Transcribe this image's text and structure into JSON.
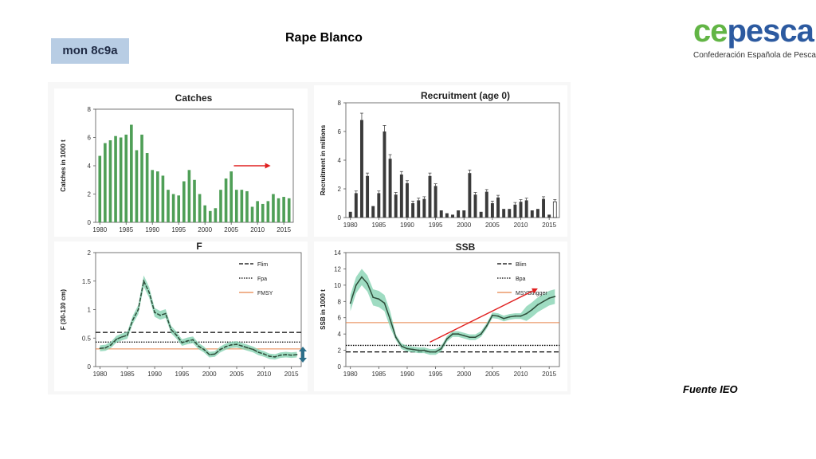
{
  "header": {
    "title": "Rape Blanco",
    "stock_tag": "mon 8c9a"
  },
  "logo": {
    "word_ce": "ce",
    "word_pesca": "pesca",
    "subtitle": "Confederación Española de Pesca",
    "colors": {
      "green": "#62b545",
      "blue": "#2c5aa0"
    }
  },
  "footer": {
    "source": "Fuente IEO"
  },
  "chart_data": [
    {
      "type": "bar",
      "title": "Catches",
      "ylabel": "Catches in 1000 t",
      "xlabel": "",
      "ylim": [
        0,
        8
      ],
      "yticks": [
        "0",
        "2",
        "4",
        "6",
        "8"
      ],
      "xticks": [
        "1980",
        "1985",
        "1990",
        "1995",
        "2000",
        "2005",
        "2010",
        "2015"
      ],
      "x": [
        1980,
        1981,
        1982,
        1983,
        1984,
        1985,
        1986,
        1987,
        1988,
        1989,
        1990,
        1991,
        1992,
        1993,
        1994,
        1995,
        1996,
        1997,
        1998,
        1999,
        2000,
        2001,
        2002,
        2003,
        2004,
        2005,
        2006,
        2007,
        2008,
        2009,
        2010,
        2011,
        2012,
        2013,
        2014,
        2015,
        2016
      ],
      "values": [
        4.7,
        5.6,
        5.8,
        6.1,
        6.0,
        6.2,
        6.9,
        5.1,
        6.2,
        4.9,
        3.7,
        3.6,
        3.3,
        2.3,
        2.0,
        1.9,
        2.9,
        3.7,
        3.0,
        2.0,
        1.2,
        0.8,
        1.0,
        2.3,
        3.1,
        3.6,
        2.3,
        2.3,
        2.2,
        1.1,
        1.5,
        1.3,
        1.5,
        2.0,
        1.7,
        1.8,
        1.7
      ],
      "bar_color": "#4f9f57",
      "arrow_color": "#e02020"
    },
    {
      "type": "bar",
      "title": "Recruitment (age 0)",
      "ylabel": "Recruitment in millions",
      "xlabel": "",
      "ylim": [
        0,
        8
      ],
      "yticks": [
        "0",
        "2",
        "4",
        "6",
        "8"
      ],
      "xticks": [
        "1980",
        "1985",
        "1990",
        "1995",
        "2000",
        "2005",
        "2010",
        "2015"
      ],
      "x": [
        1980,
        1981,
        1982,
        1983,
        1984,
        1985,
        1986,
        1987,
        1988,
        1989,
        1990,
        1991,
        1992,
        1993,
        1994,
        1995,
        1996,
        1997,
        1998,
        1999,
        2000,
        2001,
        2002,
        2003,
        2004,
        2005,
        2006,
        2007,
        2008,
        2009,
        2010,
        2011,
        2012,
        2013,
        2014,
        2015,
        2016
      ],
      "values": [
        0.4,
        1.7,
        6.8,
        2.9,
        0.8,
        1.7,
        6.0,
        4.1,
        1.6,
        3.0,
        2.4,
        1.0,
        1.2,
        1.3,
        2.9,
        2.2,
        0.5,
        0.3,
        0.2,
        0.5,
        0.5,
        3.1,
        1.6,
        0.4,
        1.8,
        1.0,
        1.4,
        0.6,
        0.6,
        0.9,
        1.1,
        1.2,
        0.5,
        0.6,
        1.3,
        0.2,
        1.1
      ],
      "bar_color": "#3a3a3a",
      "last_bar_open": true
    },
    {
      "type": "line",
      "title": "F",
      "ylabel": "F (30-130 cm)",
      "xlabel": "",
      "ylim": [
        0,
        2
      ],
      "yticks": [
        "0",
        "0.5",
        "1",
        "1.5",
        "2"
      ],
      "xticks": [
        "1980",
        "1985",
        "1990",
        "1995",
        "2000",
        "2005",
        "2010",
        "2015"
      ],
      "x": [
        1980,
        1981,
        1982,
        1983,
        1984,
        1985,
        1986,
        1987,
        1988,
        1989,
        1990,
        1991,
        1992,
        1993,
        1994,
        1995,
        1996,
        1997,
        1998,
        1999,
        2000,
        2001,
        2002,
        2003,
        2004,
        2005,
        2006,
        2007,
        2008,
        2009,
        2010,
        2011,
        2012,
        2013,
        2014,
        2015,
        2016
      ],
      "series": [
        {
          "values": [
            0.32,
            0.33,
            0.38,
            0.48,
            0.52,
            0.55,
            0.82,
            1.0,
            1.5,
            1.3,
            0.95,
            0.9,
            0.93,
            0.65,
            0.55,
            0.42,
            0.45,
            0.47,
            0.36,
            0.3,
            0.21,
            0.22,
            0.3,
            0.35,
            0.38,
            0.39,
            0.36,
            0.33,
            0.3,
            0.25,
            0.22,
            0.18,
            0.17,
            0.2,
            0.21,
            0.2,
            0.21
          ]
        }
      ],
      "reference_lines": [
        {
          "name": "Flim",
          "value": 0.6,
          "style": "dashed",
          "color": "#000000"
        },
        {
          "name": "Fpa",
          "value": 0.43,
          "style": "dotted",
          "color": "#000000"
        },
        {
          "name": "FMSY",
          "value": 0.31,
          "style": "solid",
          "color": "#e8834a"
        }
      ],
      "line_color": "#2d4d3a",
      "band_color": "#7fd0ae"
    },
    {
      "type": "line",
      "title": "SSB",
      "ylabel": "SSB in 1000 t",
      "xlabel": "",
      "ylim": [
        0,
        14
      ],
      "yticks": [
        "0",
        "2",
        "4",
        "6",
        "8",
        "10",
        "12",
        "14"
      ],
      "xticks": [
        "1980",
        "1985",
        "1990",
        "1995",
        "2000",
        "2005",
        "2010",
        "2015"
      ],
      "x": [
        1980,
        1981,
        1982,
        1983,
        1984,
        1985,
        1986,
        1987,
        1988,
        1989,
        1990,
        1991,
        1992,
        1993,
        1994,
        1995,
        1996,
        1997,
        1998,
        1999,
        2000,
        2001,
        2002,
        2003,
        2004,
        2005,
        2006,
        2007,
        2008,
        2009,
        2010,
        2011,
        2012,
        2013,
        2014,
        2015,
        2016
      ],
      "series": [
        {
          "values": [
            7.8,
            10.0,
            11.0,
            10.2,
            8.5,
            8.3,
            7.8,
            5.8,
            3.6,
            2.5,
            2.2,
            2.1,
            2.0,
            2.0,
            1.8,
            1.8,
            2.2,
            3.4,
            4.0,
            4.0,
            3.8,
            3.6,
            3.6,
            4.0,
            5.0,
            6.3,
            6.2,
            5.9,
            6.1,
            6.2,
            6.2,
            6.5,
            7.0,
            7.6,
            8.0,
            8.4,
            8.6
          ]
        }
      ],
      "reference_lines": [
        {
          "name": "Blim",
          "value": 1.8,
          "style": "dashed",
          "color": "#000000"
        },
        {
          "name": "Bpa",
          "value": 2.6,
          "style": "dotted",
          "color": "#000000"
        },
        {
          "name": "MSYBtrigger",
          "value": 5.4,
          "style": "solid",
          "color": "#e8834a"
        }
      ],
      "line_color": "#2d4d3a",
      "band_color": "#7fd0ae",
      "arrow_color": "#e02020"
    }
  ]
}
